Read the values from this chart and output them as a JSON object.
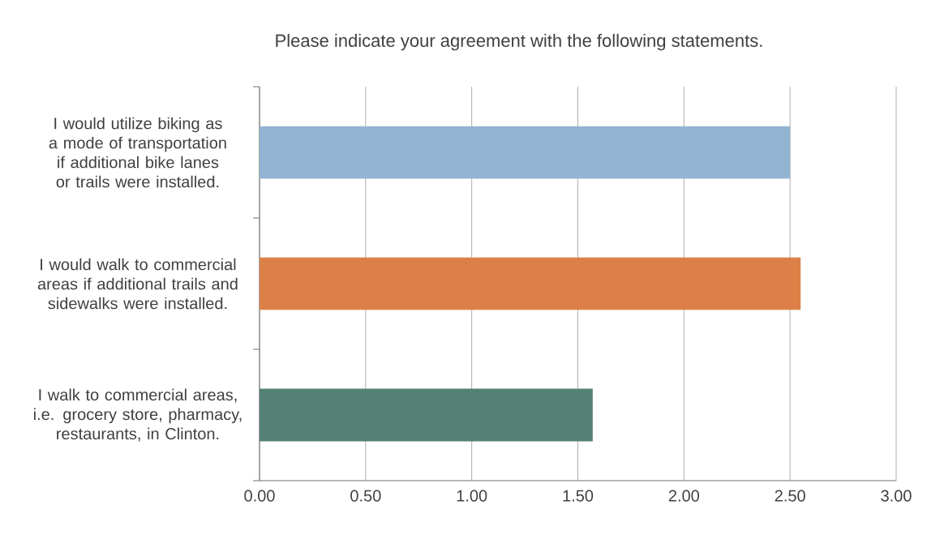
{
  "chart_data": {
    "type": "bar",
    "orientation": "horizontal",
    "title": "Please indicate your agreement with the following statements.",
    "categories": [
      "I would utilize biking as a mode of transportation if additional bike lanes or trails were installed.",
      "I would walk to commercial areas if additional trails and sidewalks were installed.",
      "I walk to commercial areas, i.e. grocery store, pharmacy, restaurants, in Clinton."
    ],
    "values": [
      2.5,
      2.55,
      1.57
    ],
    "colors": [
      "#93b3d2",
      "#dd8047",
      "#548076"
    ],
    "xlim": [
      0,
      3
    ],
    "xticks": [
      {
        "value": 0,
        "label": "0.00"
      },
      {
        "value": 0.5,
        "label": "0.50"
      },
      {
        "value": 1,
        "label": "1.00"
      },
      {
        "value": 1.5,
        "label": "1.50"
      },
      {
        "value": 2,
        "label": "2.00"
      },
      {
        "value": 2.5,
        "label": "2.50"
      },
      {
        "value": 3,
        "label": "3.00"
      }
    ],
    "grid": "x"
  }
}
